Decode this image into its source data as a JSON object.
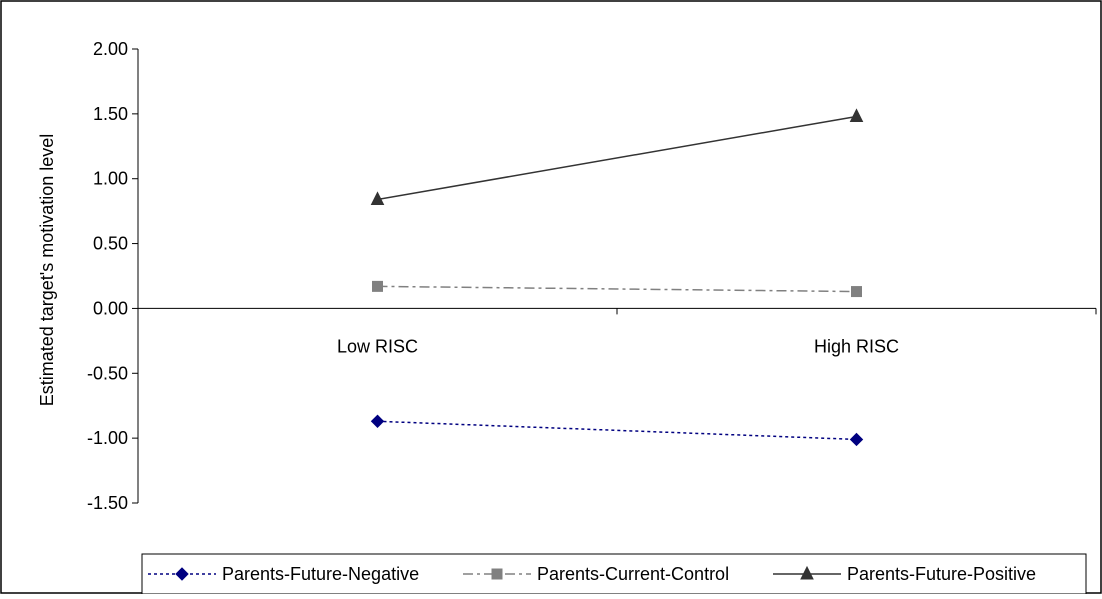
{
  "chart_data": {
    "type": "line",
    "title": "",
    "xlabel": "",
    "ylabel": "Estimated target's motivation level",
    "categories": [
      "Low RISC",
      "High RISC"
    ],
    "ylim": [
      -1.5,
      2.0
    ],
    "yticks": [
      2.0,
      1.5,
      1.0,
      0.5,
      0.0,
      -0.5,
      -1.0,
      -1.5
    ],
    "ytick_labels": [
      "2.00",
      "1.50",
      "1.00",
      "0.50",
      "0.00",
      "-0.50",
      "-1.00",
      "-1.50"
    ],
    "grid": false,
    "legend_position": "bottom",
    "series": [
      {
        "name": "Parents-Future-Negative",
        "values": [
          -0.87,
          -1.01
        ],
        "color": "#000080",
        "marker": "diamond",
        "line_style": "dotted"
      },
      {
        "name": "Parents-Current-Control",
        "values": [
          0.17,
          0.13
        ],
        "color": "#808080",
        "marker": "square",
        "line_style": "dash-dot"
      },
      {
        "name": "Parents-Future-Positive",
        "values": [
          0.84,
          1.48
        ],
        "color": "#333333",
        "marker": "triangle",
        "line_style": "solid"
      }
    ]
  }
}
